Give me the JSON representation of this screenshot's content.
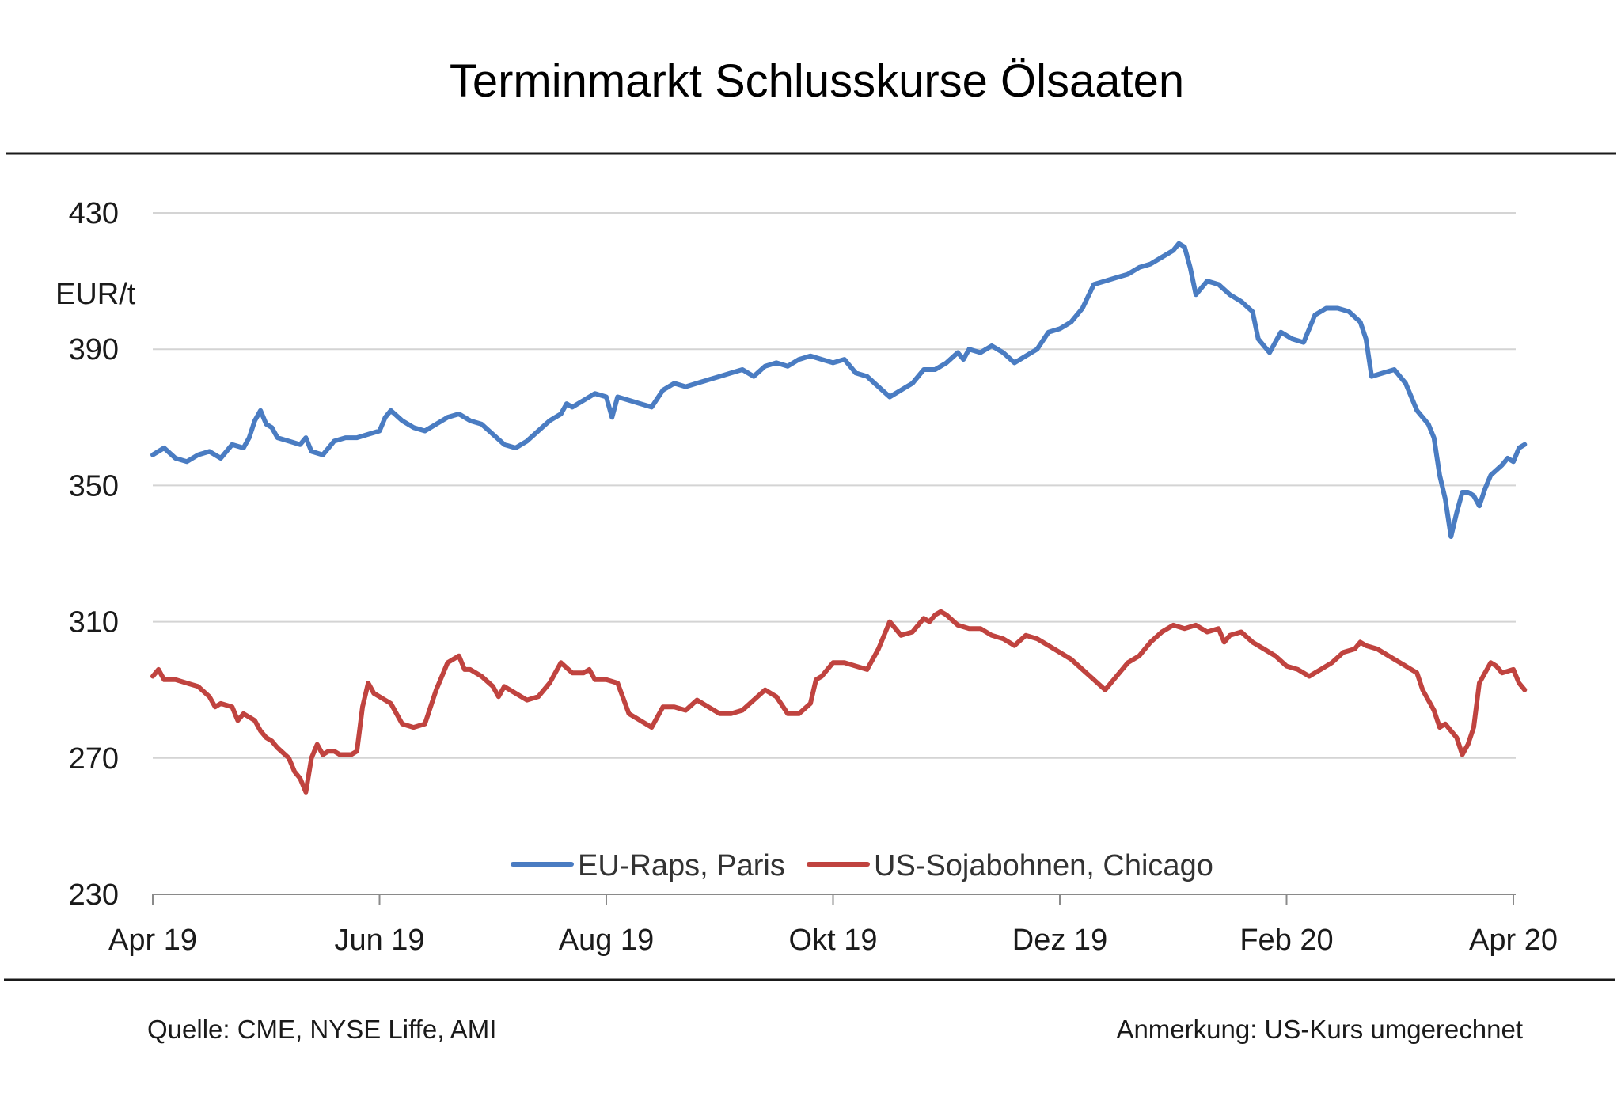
{
  "chart_data": {
    "type": "line",
    "title": "Terminmarkt Schlusskurse  Ölsaaten",
    "ylabel": "EUR/t",
    "ylim": [
      230,
      430
    ],
    "yticks": [
      430,
      390,
      350,
      310,
      270,
      230
    ],
    "x_range": [
      0,
      12.3
    ],
    "x_ticks": [
      {
        "label": "Apr 19",
        "x": 0
      },
      {
        "label": "Jun 19",
        "x": 2
      },
      {
        "label": "Aug 19",
        "x": 4
      },
      {
        "label": "Okt 19",
        "x": 6
      },
      {
        "label": "Dez 19",
        "x": 8
      },
      {
        "label": "Feb 20",
        "x": 10
      },
      {
        "label": "Apr 20",
        "x": 12
      }
    ],
    "grid": true,
    "legend_position": "bottom-center",
    "series": [
      {
        "name": "EU-Raps, Paris",
        "color": "#4a7cc2",
        "points": [
          [
            0.0,
            359
          ],
          [
            0.1,
            361
          ],
          [
            0.2,
            358
          ],
          [
            0.3,
            357
          ],
          [
            0.4,
            359
          ],
          [
            0.5,
            360
          ],
          [
            0.6,
            358
          ],
          [
            0.7,
            362
          ],
          [
            0.8,
            361
          ],
          [
            0.85,
            364
          ],
          [
            0.9,
            369
          ],
          [
            0.95,
            372
          ],
          [
            1.0,
            368
          ],
          [
            1.05,
            367
          ],
          [
            1.1,
            364
          ],
          [
            1.2,
            363
          ],
          [
            1.3,
            362
          ],
          [
            1.35,
            364
          ],
          [
            1.4,
            360
          ],
          [
            1.5,
            359
          ],
          [
            1.6,
            363
          ],
          [
            1.7,
            364
          ],
          [
            1.8,
            364
          ],
          [
            1.9,
            365
          ],
          [
            2.0,
            366
          ],
          [
            2.05,
            370
          ],
          [
            2.1,
            372
          ],
          [
            2.2,
            369
          ],
          [
            2.3,
            367
          ],
          [
            2.4,
            366
          ],
          [
            2.5,
            368
          ],
          [
            2.6,
            370
          ],
          [
            2.7,
            371
          ],
          [
            2.8,
            369
          ],
          [
            2.9,
            368
          ],
          [
            3.0,
            365
          ],
          [
            3.1,
            362
          ],
          [
            3.2,
            361
          ],
          [
            3.3,
            363
          ],
          [
            3.4,
            366
          ],
          [
            3.5,
            369
          ],
          [
            3.6,
            371
          ],
          [
            3.65,
            374
          ],
          [
            3.7,
            373
          ],
          [
            3.8,
            375
          ],
          [
            3.9,
            377
          ],
          [
            4.0,
            376
          ],
          [
            4.05,
            370
          ],
          [
            4.1,
            376
          ],
          [
            4.2,
            375
          ],
          [
            4.3,
            374
          ],
          [
            4.4,
            373
          ],
          [
            4.5,
            378
          ],
          [
            4.6,
            380
          ],
          [
            4.7,
            379
          ],
          [
            4.8,
            380
          ],
          [
            4.9,
            381
          ],
          [
            5.0,
            382
          ],
          [
            5.1,
            383
          ],
          [
            5.2,
            384
          ],
          [
            5.3,
            382
          ],
          [
            5.4,
            385
          ],
          [
            5.5,
            386
          ],
          [
            5.6,
            385
          ],
          [
            5.7,
            387
          ],
          [
            5.8,
            388
          ],
          [
            5.9,
            387
          ],
          [
            6.0,
            386
          ],
          [
            6.1,
            387
          ],
          [
            6.2,
            383
          ],
          [
            6.3,
            382
          ],
          [
            6.4,
            379
          ],
          [
            6.5,
            376
          ],
          [
            6.6,
            378
          ],
          [
            6.7,
            380
          ],
          [
            6.8,
            384
          ],
          [
            6.9,
            384
          ],
          [
            7.0,
            386
          ],
          [
            7.1,
            389
          ],
          [
            7.15,
            387
          ],
          [
            7.2,
            390
          ],
          [
            7.3,
            389
          ],
          [
            7.4,
            391
          ],
          [
            7.5,
            389
          ],
          [
            7.6,
            386
          ],
          [
            7.7,
            388
          ],
          [
            7.8,
            390
          ],
          [
            7.9,
            395
          ],
          [
            8.0,
            396
          ],
          [
            8.1,
            398
          ],
          [
            8.2,
            402
          ],
          [
            8.3,
            409
          ],
          [
            8.4,
            410
          ],
          [
            8.5,
            411
          ],
          [
            8.6,
            412
          ],
          [
            8.7,
            414
          ],
          [
            8.8,
            415
          ],
          [
            8.9,
            417
          ],
          [
            9.0,
            419
          ],
          [
            9.05,
            421
          ],
          [
            9.1,
            420
          ],
          [
            9.15,
            414
          ],
          [
            9.2,
            406
          ],
          [
            9.3,
            410
          ],
          [
            9.4,
            409
          ],
          [
            9.5,
            406
          ],
          [
            9.6,
            404
          ],
          [
            9.7,
            401
          ],
          [
            9.75,
            393
          ],
          [
            9.85,
            389
          ],
          [
            9.95,
            395
          ],
          [
            10.05,
            393
          ],
          [
            10.15,
            392
          ],
          [
            10.25,
            400
          ],
          [
            10.35,
            402
          ],
          [
            10.45,
            402
          ],
          [
            10.55,
            401
          ],
          [
            10.65,
            398
          ],
          [
            10.7,
            393
          ],
          [
            10.75,
            382
          ],
          [
            10.85,
            383
          ],
          [
            10.95,
            384
          ],
          [
            11.05,
            380
          ],
          [
            11.15,
            372
          ],
          [
            11.25,
            368
          ],
          [
            11.3,
            364
          ],
          [
            11.35,
            353
          ],
          [
            11.4,
            346
          ],
          [
            11.45,
            335
          ],
          [
            11.5,
            342
          ],
          [
            11.55,
            348
          ],
          [
            11.6,
            348
          ],
          [
            11.65,
            347
          ],
          [
            11.7,
            344
          ],
          [
            11.75,
            349
          ],
          [
            11.8,
            353
          ],
          [
            11.9,
            356
          ],
          [
            11.95,
            358
          ],
          [
            12.0,
            357
          ],
          [
            12.05,
            361
          ],
          [
            12.1,
            362
          ]
        ]
      },
      {
        "name": "US-Sojabohnen, Chicago",
        "color": "#c0433f",
        "points": [
          [
            0.0,
            294
          ],
          [
            0.05,
            296
          ],
          [
            0.1,
            293
          ],
          [
            0.2,
            293
          ],
          [
            0.3,
            292
          ],
          [
            0.4,
            291
          ],
          [
            0.5,
            288
          ],
          [
            0.55,
            285
          ],
          [
            0.6,
            286
          ],
          [
            0.7,
            285
          ],
          [
            0.75,
            281
          ],
          [
            0.8,
            283
          ],
          [
            0.85,
            282
          ],
          [
            0.9,
            281
          ],
          [
            0.95,
            278
          ],
          [
            1.0,
            276
          ],
          [
            1.05,
            275
          ],
          [
            1.1,
            273
          ],
          [
            1.2,
            270
          ],
          [
            1.25,
            266
          ],
          [
            1.3,
            264
          ],
          [
            1.35,
            260
          ],
          [
            1.4,
            270
          ],
          [
            1.45,
            274
          ],
          [
            1.5,
            271
          ],
          [
            1.55,
            272
          ],
          [
            1.6,
            272
          ],
          [
            1.65,
            271
          ],
          [
            1.7,
            271
          ],
          [
            1.75,
            271
          ],
          [
            1.8,
            272
          ],
          [
            1.85,
            285
          ],
          [
            1.9,
            292
          ],
          [
            1.95,
            289
          ],
          [
            2.0,
            288
          ],
          [
            2.1,
            286
          ],
          [
            2.2,
            280
          ],
          [
            2.3,
            279
          ],
          [
            2.4,
            280
          ],
          [
            2.5,
            290
          ],
          [
            2.6,
            298
          ],
          [
            2.7,
            300
          ],
          [
            2.75,
            296
          ],
          [
            2.8,
            296
          ],
          [
            2.9,
            294
          ],
          [
            3.0,
            291
          ],
          [
            3.05,
            288
          ],
          [
            3.1,
            291
          ],
          [
            3.2,
            289
          ],
          [
            3.3,
            287
          ],
          [
            3.4,
            288
          ],
          [
            3.5,
            292
          ],
          [
            3.6,
            298
          ],
          [
            3.7,
            295
          ],
          [
            3.8,
            295
          ],
          [
            3.85,
            296
          ],
          [
            3.9,
            293
          ],
          [
            4.0,
            293
          ],
          [
            4.1,
            292
          ],
          [
            4.2,
            283
          ],
          [
            4.3,
            281
          ],
          [
            4.4,
            279
          ],
          [
            4.5,
            285
          ],
          [
            4.6,
            285
          ],
          [
            4.7,
            284
          ],
          [
            4.8,
            287
          ],
          [
            4.9,
            285
          ],
          [
            5.0,
            283
          ],
          [
            5.1,
            283
          ],
          [
            5.2,
            284
          ],
          [
            5.3,
            287
          ],
          [
            5.4,
            290
          ],
          [
            5.5,
            288
          ],
          [
            5.6,
            283
          ],
          [
            5.7,
            283
          ],
          [
            5.8,
            286
          ],
          [
            5.85,
            293
          ],
          [
            5.9,
            294
          ],
          [
            6.0,
            298
          ],
          [
            6.1,
            298
          ],
          [
            6.2,
            297
          ],
          [
            6.3,
            296
          ],
          [
            6.4,
            302
          ],
          [
            6.5,
            310
          ],
          [
            6.6,
            306
          ],
          [
            6.7,
            307
          ],
          [
            6.8,
            311
          ],
          [
            6.85,
            310
          ],
          [
            6.9,
            312
          ],
          [
            6.95,
            313
          ],
          [
            7.0,
            312
          ],
          [
            7.1,
            309
          ],
          [
            7.2,
            308
          ],
          [
            7.3,
            308
          ],
          [
            7.4,
            306
          ],
          [
            7.5,
            305
          ],
          [
            7.6,
            303
          ],
          [
            7.7,
            306
          ],
          [
            7.8,
            305
          ],
          [
            7.9,
            303
          ],
          [
            8.0,
            301
          ],
          [
            8.1,
            299
          ],
          [
            8.2,
            296
          ],
          [
            8.3,
            293
          ],
          [
            8.4,
            290
          ],
          [
            8.5,
            294
          ],
          [
            8.6,
            298
          ],
          [
            8.7,
            300
          ],
          [
            8.8,
            304
          ],
          [
            8.9,
            307
          ],
          [
            9.0,
            309
          ],
          [
            9.1,
            308
          ],
          [
            9.2,
            309
          ],
          [
            9.3,
            307
          ],
          [
            9.4,
            308
          ],
          [
            9.45,
            304
          ],
          [
            9.5,
            306
          ],
          [
            9.6,
            307
          ],
          [
            9.7,
            304
          ],
          [
            9.8,
            302
          ],
          [
            9.9,
            300
          ],
          [
            10.0,
            297
          ],
          [
            10.1,
            296
          ],
          [
            10.2,
            294
          ],
          [
            10.3,
            296
          ],
          [
            10.4,
            298
          ],
          [
            10.5,
            301
          ],
          [
            10.6,
            302
          ],
          [
            10.65,
            304
          ],
          [
            10.7,
            303
          ],
          [
            10.8,
            302
          ],
          [
            10.9,
            300
          ],
          [
            11.0,
            298
          ],
          [
            11.1,
            296
          ],
          [
            11.15,
            295
          ],
          [
            11.2,
            290
          ],
          [
            11.3,
            284
          ],
          [
            11.35,
            279
          ],
          [
            11.4,
            280
          ],
          [
            11.45,
            278
          ],
          [
            11.5,
            276
          ],
          [
            11.55,
            271
          ],
          [
            11.6,
            274
          ],
          [
            11.65,
            279
          ],
          [
            11.7,
            292
          ],
          [
            11.8,
            298
          ],
          [
            11.85,
            297
          ],
          [
            11.9,
            295
          ],
          [
            12.0,
            296
          ],
          [
            12.05,
            292
          ],
          [
            12.1,
            290
          ]
        ]
      }
    ]
  },
  "footer": {
    "source": "Quelle:  CME, NYSE Liffe, AMI",
    "note": "Anmerkung:  US-Kurs umgerechnet"
  }
}
